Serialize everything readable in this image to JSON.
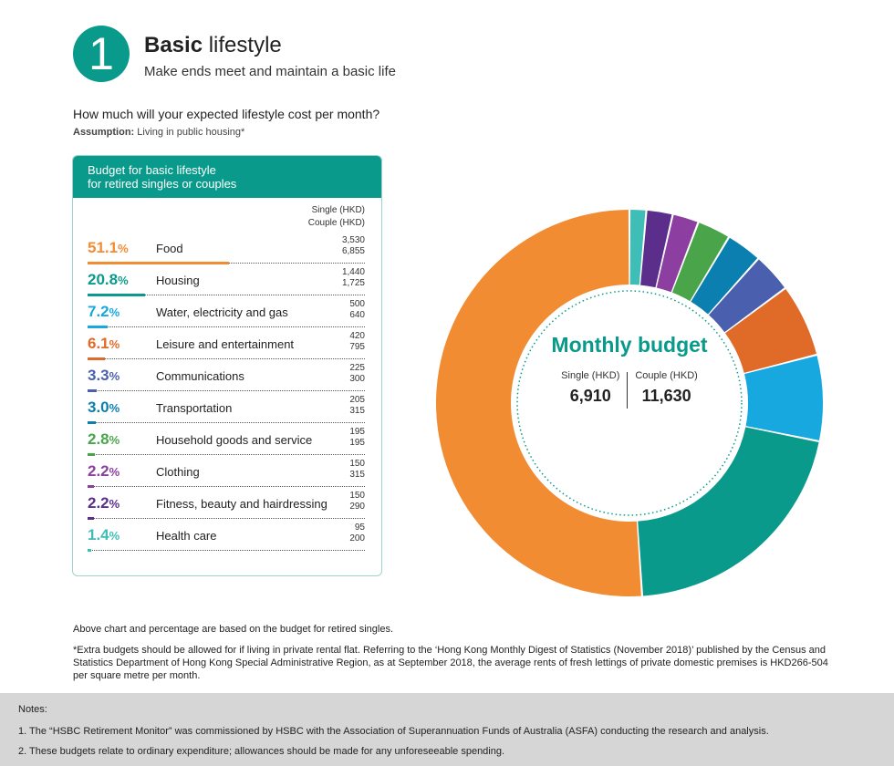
{
  "header": {
    "number": "1",
    "title_bold": "Basic",
    "title_rest": " lifestyle",
    "subtitle": "Make ends meet and maintain a basic life",
    "question": "How much will your expected lifestyle cost per month?",
    "assumption_label": "Assumption:",
    "assumption_text": " Living in public housing*"
  },
  "panel": {
    "title_line1": "Budget for basic lifestyle",
    "title_line2": "for retired singles or couples",
    "col_single": "Single (HKD)",
    "col_couple": "Couple (HKD)"
  },
  "center": {
    "caption": "Monthly budget",
    "single_label": "Single (HKD)",
    "single_value": "6,910",
    "couple_label": "Couple (HKD)",
    "couple_value": "11,630"
  },
  "chart_data": {
    "type": "pie",
    "categories": [
      "Food",
      "Housing",
      "Water, electricity and gas",
      "Leisure and entertainment",
      "Communications",
      "Transportation",
      "Household goods and service",
      "Clothing",
      "Fitness, beauty and hairdressing",
      "Health care"
    ],
    "percent_labels": [
      "51.1",
      "20.8",
      "7.2",
      "6.1",
      "3.3",
      "3.0",
      "2.8",
      "2.2",
      "2.2",
      "1.4"
    ],
    "percent_values": [
      51.1,
      20.8,
      7.2,
      6.1,
      3.3,
      3.0,
      2.8,
      2.2,
      2.2,
      1.4
    ],
    "single_hkd": [
      "3,530",
      "1,440",
      "500",
      "420",
      "225",
      "205",
      "195",
      "150",
      "150",
      "95"
    ],
    "couple_hkd": [
      "6,855",
      "1,725",
      "640",
      "795",
      "300",
      "315",
      "195",
      "315",
      "290",
      "200"
    ],
    "colors": [
      "#f28c33",
      "#0a9a8b",
      "#18a8e0",
      "#e06a28",
      "#4a5fad",
      "#0b7fb0",
      "#4aa54a",
      "#8c3fa0",
      "#5a2e8a",
      "#3fbdb7"
    ]
  },
  "notes": {
    "above_chart": "Above chart and percentage are based on the budget for retired singles.",
    "extra": "*Extra budgets should be allowed for if living in private rental flat. Referring to the ‘Hong Kong Monthly Digest of Statistics (November 2018)’ published by the Census and Statistics Department of Hong Kong Special Administrative Region, as at September 2018, the average rents of fresh lettings of private domestic premises is HKD266-504 per square metre per month.",
    "notes_title": "Notes:",
    "note1": "1. The “HSBC Retirement Monitor” was commissioned by HSBC with the Association of Superannuation Funds of Australia (ASFA) conducting the research and analysis.",
    "note2": "2. These budgets relate to ordinary expenditure; allowances should be made for any unforeseeable spending."
  }
}
